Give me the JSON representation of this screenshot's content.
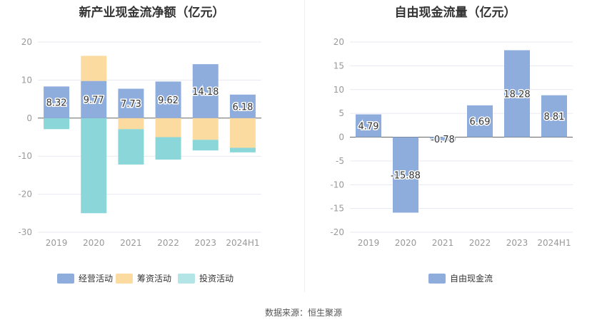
{
  "source_text": "数据来源：恒生聚源",
  "colors": {
    "operating": "#8faddc",
    "financing": "#fbdba0",
    "investing": "#8ad6d8",
    "investing_legend": "#b3e4e6",
    "free_cash": "#8faddc",
    "grid": "#e6e9f0",
    "axis": "#999999",
    "zero": "#666666"
  },
  "chart_data": [
    {
      "type": "bar",
      "stacked": true,
      "title": "新产业现金流净额（亿元）",
      "categories": [
        "2019",
        "2020",
        "2021",
        "2022",
        "2023",
        "2024H1"
      ],
      "ylim": [
        -30,
        20
      ],
      "yticks": [
        20,
        10,
        0,
        -10,
        -20,
        -30
      ],
      "grid": true,
      "legend_position": "bottom",
      "series": [
        {
          "name": "经营活动",
          "values": [
            8.32,
            9.77,
            7.73,
            9.62,
            14.18,
            6.18
          ],
          "labels": [
            "8.32",
            "9.77",
            "7.73",
            "9.62",
            "14.18",
            "6.18"
          ]
        },
        {
          "name": "筹资活动",
          "values": [
            0,
            6.6,
            -2.9,
            -5.0,
            -5.7,
            -7.8
          ]
        },
        {
          "name": "投资活动",
          "values": [
            -2.9,
            -25.0,
            -9.3,
            -5.9,
            -2.8,
            -1.2
          ]
        }
      ]
    },
    {
      "type": "bar",
      "title": "自由现金流量（亿元）",
      "categories": [
        "2019",
        "2020",
        "2021",
        "2022",
        "2023",
        "2024H1"
      ],
      "ylim": [
        -20,
        20
      ],
      "yticks": [
        20,
        15,
        10,
        5,
        0,
        -5,
        -10,
        -15,
        -20
      ],
      "grid": true,
      "legend_position": "bottom",
      "series": [
        {
          "name": "自由现金流",
          "values": [
            4.79,
            -15.88,
            -0.78,
            6.69,
            18.28,
            8.81
          ],
          "labels": [
            "4.79",
            "-15.88",
            "-0.78",
            "6.69",
            "18.28",
            "8.81"
          ]
        }
      ]
    }
  ]
}
